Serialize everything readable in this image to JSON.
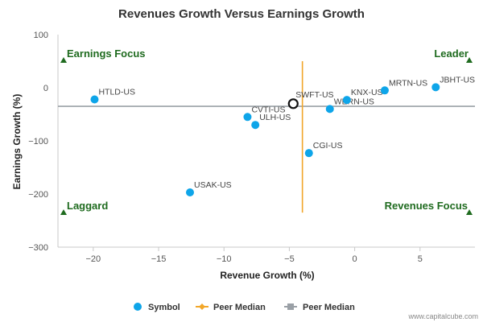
{
  "chart_data": {
    "type": "scatter",
    "title": "Revenues Growth Versus Earnings Growth",
    "xlabel": "Revenue Growth (%)",
    "ylabel": "Earnings Growth (%)",
    "xlim": [
      -22.7,
      9.2
    ],
    "ylim": [
      -300,
      100
    ],
    "x_ticks": [
      -20,
      -15,
      -10,
      -5,
      0,
      5
    ],
    "y_ticks": [
      100,
      0,
      -100,
      -200,
      -300
    ],
    "grid": false,
    "points": [
      {
        "label": "HTLD-US",
        "x": -19.9,
        "y": -22
      },
      {
        "label": "CVTI-US",
        "x": -8.2,
        "y": -55
      },
      {
        "label": "ULH-US",
        "x": -7.6,
        "y": -70
      },
      {
        "label": "USAK-US",
        "x": -12.6,
        "y": -197
      },
      {
        "label": "CGI-US",
        "x": -3.5,
        "y": -123
      },
      {
        "label": "WERN-US",
        "x": -1.9,
        "y": -40
      },
      {
        "label": "KNX-US",
        "x": -0.6,
        "y": -23
      },
      {
        "label": "MRTN-US",
        "x": 2.3,
        "y": -5
      },
      {
        "label": "JBHT-US",
        "x": 6.2,
        "y": 1
      }
    ],
    "subject": {
      "label": "SWFT-US",
      "x": -4.7,
      "y": -30
    },
    "peer_median_x": -4.0,
    "peer_median_y": -35,
    "peer_median_x_span": [
      -235,
      50
    ],
    "quadrants": {
      "top_left": "Earnings Focus",
      "top_right": "Leader",
      "bottom_left": "Laggard",
      "bottom_right": "Revenues Focus"
    },
    "legend": {
      "placement": "bottom-center",
      "items": [
        {
          "label": "Symbol",
          "color": "#0ea5e9"
        },
        {
          "label": "Peer Median",
          "color": "#f2a72a"
        },
        {
          "label": "Peer Median",
          "color": "#9aa0a6"
        }
      ]
    },
    "colors": {
      "point": "#0ea5e9",
      "vline": "#f2a72a",
      "hline": "#9aa0a6",
      "quadrant": "#1f6b1f"
    }
  },
  "credit": "www.capitalcube.com"
}
